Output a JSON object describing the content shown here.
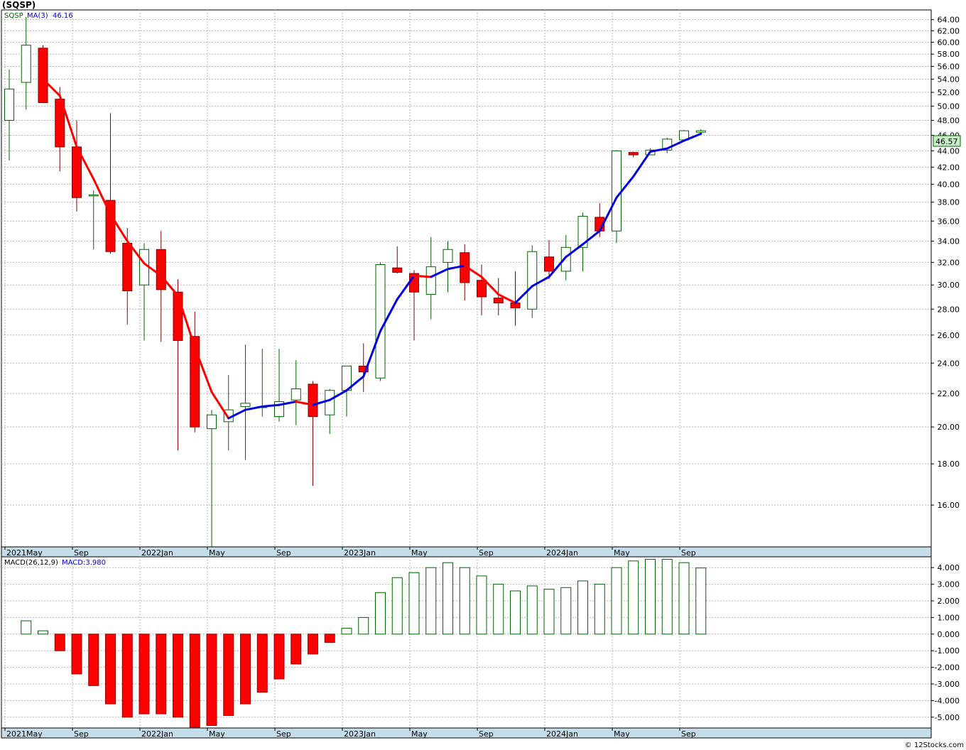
{
  "header": {
    "ticker": "(SQSP)",
    "legend_symbol": "SQSP",
    "legend_ma_label": "MA(3)",
    "legend_ma_value": "46.16",
    "macd_label": "MACD(26,12,9)",
    "macd_value_label": "MACD:3.980",
    "last_price_badge": "46.57",
    "credit": "© 12Stocks.com"
  },
  "colors": {
    "up": "#006400",
    "down": "#ff0000",
    "ma_falling": "#ff0000",
    "ma_rising": "#0000e0",
    "band": "#c5dde8",
    "grid": "#b4b4b4",
    "badge_fill": "#c8f0c8",
    "legend_symbol": "#006400",
    "legend_ma": "#0000cd"
  },
  "chart_data": [
    {
      "type": "candlestick",
      "title": "(SQSP)",
      "scale": "log",
      "ylim": [
        14.2,
        65.8
      ],
      "y_ticks": [
        "16.00",
        "18.00",
        "20.00",
        "22.00",
        "24.00",
        "26.00",
        "28.00",
        "30.00",
        "32.00",
        "34.00",
        "36.00",
        "38.00",
        "40.00",
        "42.00",
        "44.00",
        "46.00",
        "48.00",
        "50.00",
        "52.00",
        "54.00",
        "56.00",
        "58.00",
        "60.00",
        "62.00",
        "64.00"
      ],
      "x_ticks": [
        "2021May",
        "Sep",
        "2022Jan",
        "May",
        "Sep",
        "2023Jan",
        "May",
        "Sep",
        "2024Jan",
        "May",
        "Sep"
      ],
      "grid": true,
      "legend": "top-left",
      "months": [
        "2021-05",
        "2021-06",
        "2021-07",
        "2021-08",
        "2021-09",
        "2021-10",
        "2021-11",
        "2021-12",
        "2022-01",
        "2022-02",
        "2022-03",
        "2022-04",
        "2022-05",
        "2022-06",
        "2022-07",
        "2022-08",
        "2022-09",
        "2022-10",
        "2022-11",
        "2022-12",
        "2023-01",
        "2023-02",
        "2023-03",
        "2023-04",
        "2023-05",
        "2023-06",
        "2023-07",
        "2023-08",
        "2023-09",
        "2023-10",
        "2023-11",
        "2023-12",
        "2024-01",
        "2024-02",
        "2024-03",
        "2024-04",
        "2024-05",
        "2024-06",
        "2024-07",
        "2024-08",
        "2024-09",
        "2024-10"
      ],
      "ohlc": [
        [
          48.0,
          55.5,
          42.8,
          52.5
        ],
        [
          53.5,
          64.5,
          49.5,
          59.5
        ],
        [
          59.0,
          59.5,
          50.5,
          50.5
        ],
        [
          51.0,
          52.8,
          41.5,
          44.5
        ],
        [
          44.5,
          48.0,
          37.0,
          38.5
        ],
        [
          38.8,
          39.3,
          33.2,
          38.8
        ],
        [
          38.2,
          49.0,
          32.8,
          33.0
        ],
        [
          33.8,
          35.3,
          26.8,
          29.5
        ],
        [
          30.0,
          33.8,
          25.6,
          33.2
        ],
        [
          33.2,
          35.0,
          25.5,
          29.6
        ],
        [
          29.4,
          30.5,
          18.7,
          25.6
        ],
        [
          25.9,
          27.8,
          19.7,
          20.0
        ],
        [
          19.9,
          21.0,
          14.2,
          20.7
        ],
        [
          20.3,
          23.2,
          18.7,
          21.0
        ],
        [
          21.2,
          25.3,
          18.2,
          21.4
        ],
        [
          21.2,
          25.0,
          20.6,
          21.2
        ],
        [
          20.6,
          25.0,
          20.3,
          21.5
        ],
        [
          21.6,
          24.2,
          20.1,
          22.3
        ],
        [
          22.6,
          22.8,
          16.9,
          20.6
        ],
        [
          20.7,
          22.3,
          19.6,
          22.2
        ],
        [
          22.2,
          23.6,
          20.6,
          23.8
        ],
        [
          23.8,
          25.4,
          22.1,
          23.4
        ],
        [
          23.0,
          32.0,
          22.8,
          31.8
        ],
        [
          31.5,
          33.5,
          31.0,
          31.1
        ],
        [
          31.0,
          31.3,
          25.6,
          29.4
        ],
        [
          29.2,
          34.4,
          27.2,
          31.6
        ],
        [
          32.0,
          34.0,
          29.4,
          33.2
        ],
        [
          32.9,
          33.7,
          28.7,
          30.2
        ],
        [
          30.4,
          31.8,
          27.5,
          29.0
        ],
        [
          28.9,
          30.6,
          27.5,
          28.5
        ],
        [
          28.5,
          31.2,
          26.7,
          28.1
        ],
        [
          28.0,
          33.6,
          27.3,
          33.0
        ],
        [
          32.5,
          34.1,
          30.5,
          31.2
        ],
        [
          31.2,
          34.6,
          30.4,
          33.4
        ],
        [
          33.4,
          36.9,
          31.2,
          36.5
        ],
        [
          36.4,
          37.9,
          34.4,
          35.0
        ],
        [
          35.0,
          44.1,
          33.8,
          44.0
        ],
        [
          43.8,
          43.9,
          43.2,
          43.5
        ],
        [
          43.5,
          44.3,
          43.5,
          44.1
        ],
        [
          44.1,
          45.7,
          43.7,
          45.5
        ],
        [
          45.4,
          46.7,
          45.3,
          46.6
        ],
        [
          46.4,
          46.8,
          46.3,
          46.6
        ]
      ],
      "ma3": [
        null,
        null,
        54.0,
        51.5,
        44.5,
        40.6,
        36.7,
        34.0,
        31.9,
        30.8,
        29.1,
        25.1,
        22.1,
        20.5,
        21.0,
        21.2,
        21.3,
        21.5,
        21.3,
        21.6,
        22.2,
        23.1,
        26.3,
        28.8,
        30.8,
        30.7,
        31.4,
        31.7,
        30.7,
        29.2,
        28.5,
        29.9,
        30.7,
        32.5,
        33.7,
        35.0,
        38.5,
        40.9,
        43.9,
        44.3,
        45.3,
        46.2
      ]
    },
    {
      "type": "bar",
      "title": "MACD(26,12,9)",
      "ylim": [
        -5.65,
        4.65
      ],
      "y_ticks": [
        "-5.000",
        "-4.000",
        "-3.000",
        "-2.000",
        "-1.000",
        "0.000",
        "1.000",
        "2.000",
        "3.000",
        "4.000"
      ],
      "x_ticks": [
        "2021May",
        "Sep",
        "2022Jan",
        "May",
        "Sep",
        "2023Jan",
        "May",
        "Sep",
        "2024Jan",
        "May",
        "Sep"
      ],
      "values": [
        0.0,
        0.8,
        0.2,
        -1.0,
        -2.4,
        -3.1,
        -4.2,
        -5.0,
        -4.8,
        -4.8,
        -5.0,
        -5.6,
        -5.5,
        -4.9,
        -4.2,
        -3.5,
        -2.7,
        -1.8,
        -1.2,
        -0.5,
        0.35,
        1.0,
        2.5,
        3.4,
        3.7,
        4.0,
        4.3,
        4.0,
        3.5,
        3.0,
        2.6,
        2.9,
        2.7,
        2.8,
        3.2,
        3.0,
        4.0,
        4.4,
        4.5,
        4.5,
        4.3,
        3.98
      ]
    }
  ]
}
